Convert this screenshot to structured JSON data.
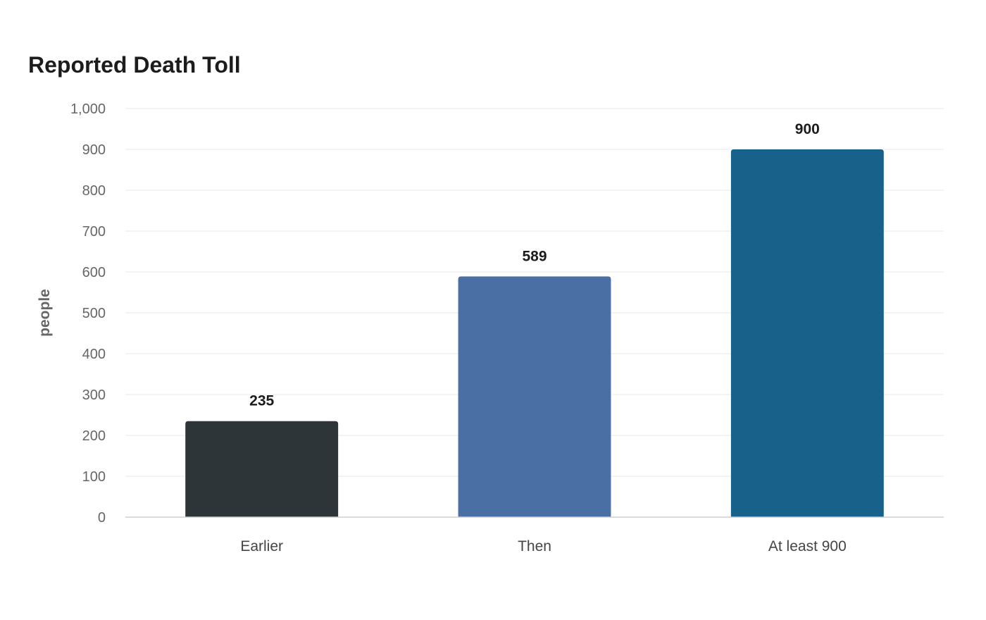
{
  "chart_data": {
    "type": "bar",
    "title": "Reported Death Toll",
    "ylabel": "people",
    "xlabel": "",
    "categories": [
      "Earlier",
      "Then",
      "At least 900"
    ],
    "values": [
      235,
      589,
      900
    ],
    "colors": [
      "#2e3538",
      "#4a6fa5",
      "#17618a"
    ],
    "ylim": [
      0,
      1000
    ],
    "yticks": [
      0,
      100,
      200,
      300,
      400,
      500,
      600,
      700,
      800,
      900,
      1000
    ],
    "ytick_labels": [
      "0",
      "100",
      "200",
      "300",
      "400",
      "500",
      "600",
      "700",
      "800",
      "900",
      "1,000"
    ],
    "grid": true,
    "data_labels": true,
    "legend": "none"
  }
}
